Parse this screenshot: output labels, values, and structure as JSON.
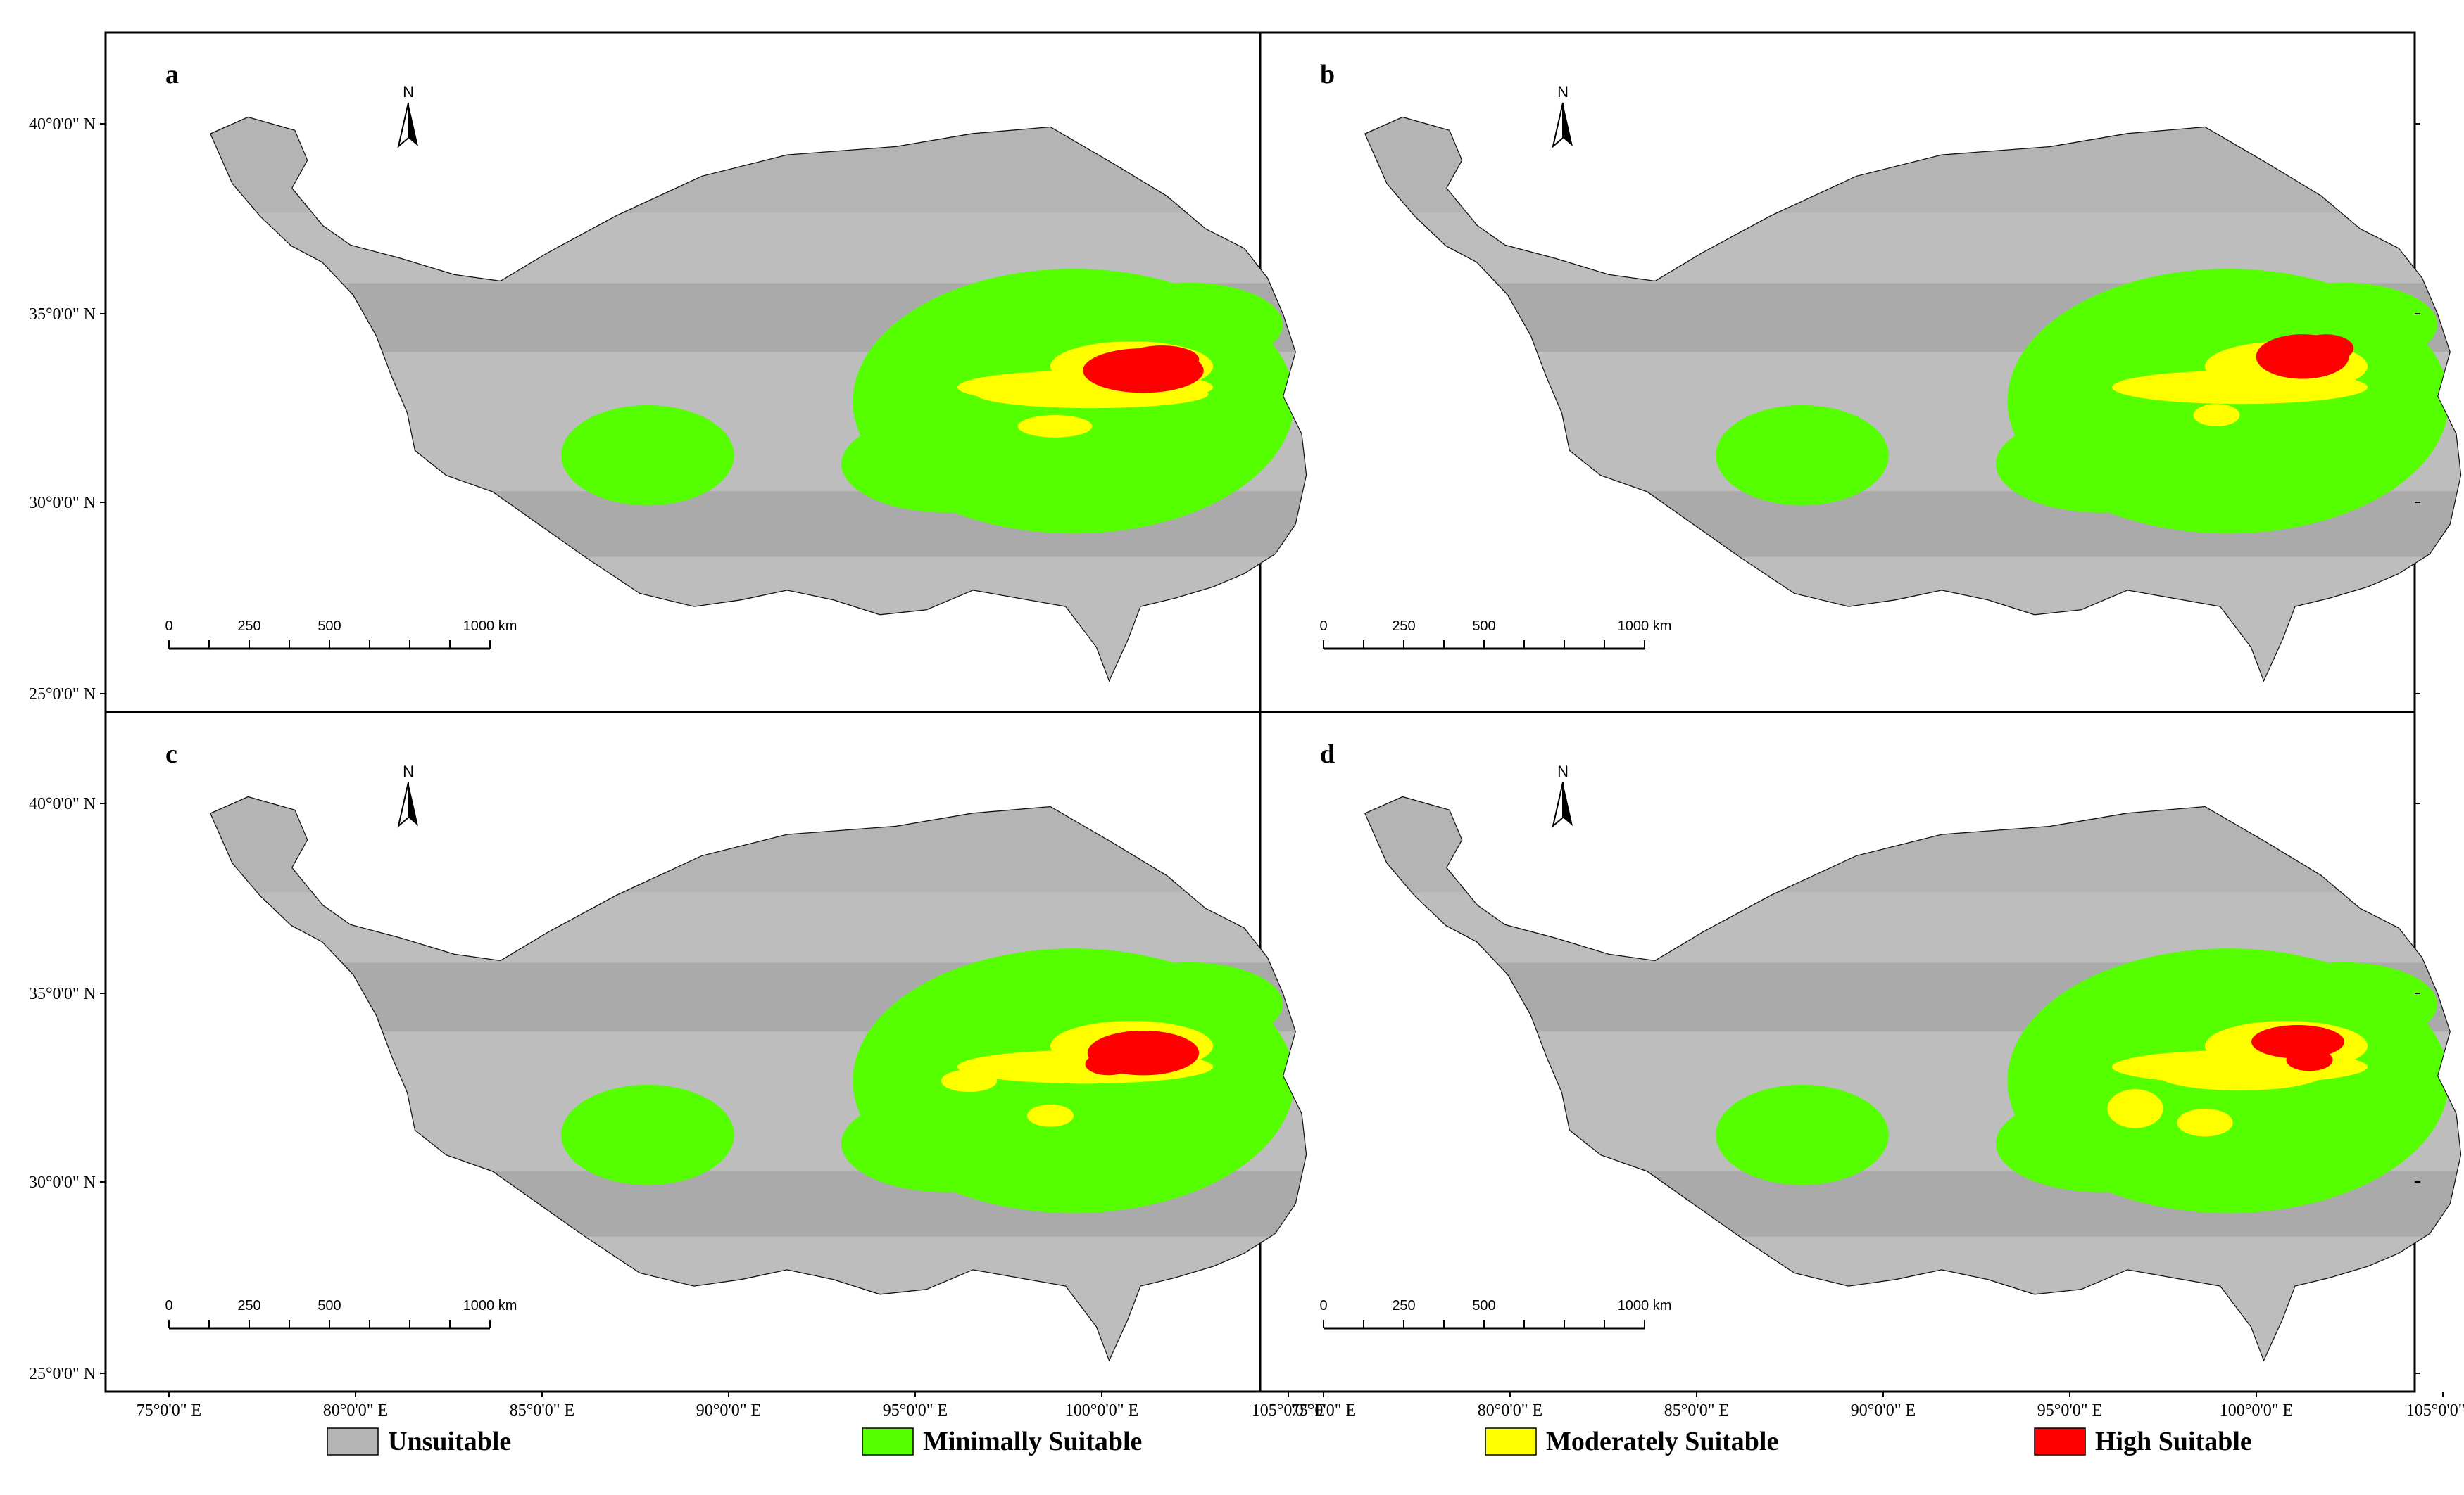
{
  "panels": [
    {
      "label": "a",
      "green": [
        [
          0,
          -0.05,
          0.07,
          0.08
        ],
        [
          -0.5,
          0.05,
          0.15,
          0.1
        ],
        [
          -0.28,
          -0.48,
          0.04,
          0.04
        ]
      ],
      "yellow": [
        [
          0.08,
          -0.05,
          0.25,
          0.05
        ],
        [
          -0.08,
          0.18,
          0.08,
          0.04
        ]
      ],
      "red": [
        [
          0.3,
          -0.22,
          0.13,
          0.08
        ],
        [
          0.38,
          -0.3,
          0.08,
          0.05
        ]
      ]
    },
    {
      "label": "b",
      "green": [
        [
          0.05,
          -0.08,
          0.06,
          0.08
        ],
        [
          -0.38,
          0.12,
          0.09,
          0.12
        ],
        [
          -0.3,
          -0.42,
          0.03,
          0.03
        ]
      ],
      "yellow": [
        [
          0.1,
          -0.12,
          0.22,
          0.05
        ],
        [
          -0.05,
          0.1,
          0.05,
          0.04
        ]
      ],
      "red": [
        [
          0.32,
          -0.32,
          0.1,
          0.08
        ],
        [
          0.42,
          -0.38,
          0.06,
          0.05
        ]
      ]
    },
    {
      "label": "c",
      "green": [
        [
          0.02,
          -0.05,
          0.06,
          0.07
        ],
        [
          -0.5,
          0.12,
          0.13,
          0.14
        ],
        [
          -0.28,
          -0.5,
          0.04,
          0.03
        ]
      ],
      "yellow": [
        [
          0.05,
          -0.1,
          0.2,
          0.06
        ],
        [
          -0.45,
          0.0,
          0.06,
          0.04
        ],
        [
          -0.1,
          0.25,
          0.05,
          0.04
        ]
      ],
      "red": [
        [
          0.3,
          -0.2,
          0.12,
          0.08
        ],
        [
          0.15,
          -0.12,
          0.05,
          0.04
        ]
      ]
    },
    {
      "label": "d",
      "green": [
        [
          0.03,
          -0.02,
          0.07,
          0.09
        ],
        [
          -0.4,
          0.2,
          0.11,
          0.16
        ],
        [
          -0.55,
          0.45,
          0.05,
          0.04
        ],
        [
          -0.35,
          -0.5,
          0.05,
          0.04
        ]
      ],
      "yellow": [
        [
          0.05,
          -0.05,
          0.18,
          0.06
        ],
        [
          -0.4,
          0.2,
          0.06,
          0.07
        ],
        [
          -0.1,
          0.3,
          0.06,
          0.05
        ]
      ],
      "red": [
        [
          0.3,
          -0.28,
          0.1,
          0.06
        ],
        [
          0.35,
          -0.15,
          0.05,
          0.04
        ]
      ]
    }
  ],
  "north_label": "N",
  "scalebar": {
    "ticks": [
      "0",
      "250",
      "500",
      "1000 km"
    ]
  },
  "lat_labels": [
    "40°0'0\" N",
    "35°0'0\" N",
    "30°0'0\" N",
    "25°0'0\" N"
  ],
  "lon_labels": [
    "75°0'0\" E",
    "80°0'0\" E",
    "85°0'0\" E",
    "90°0'0\" E",
    "95°0'0\" E",
    "100°0'0\" E",
    "105°0'0\" E"
  ],
  "legend": [
    {
      "label": "Unsuitable",
      "color": "#b4b4b4"
    },
    {
      "label": "Minimally Suitable",
      "color": "#55ff00"
    },
    {
      "label": "Moderately Suitable",
      "color": "#ffff00"
    },
    {
      "label": "High Suitable",
      "color": "#ff0000"
    }
  ],
  "colors": {
    "plateau": "#b4b4b4",
    "band_dark": "#aaaaaa",
    "band_light": "#bdbdbd",
    "minimal": "#55ff00",
    "moderate": "#ffff00",
    "high": "#ff0000",
    "outline": "#111111"
  }
}
